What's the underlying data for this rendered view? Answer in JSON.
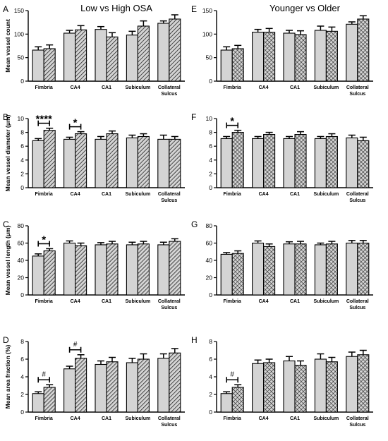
{
  "titles": {
    "left": "Low vs High OSA",
    "right": "Younger vs Older"
  },
  "colors": {
    "bar_fill": "#d4d4d4",
    "stroke": "#000000"
  },
  "chart_data": [
    {
      "panel": "A",
      "type": "bar",
      "column": "left",
      "row": 0,
      "pattern": "hatch",
      "ylabel": "Mean vessel count",
      "ylim": [
        0,
        150
      ],
      "yticks": [
        0,
        50,
        100,
        150
      ],
      "categories": [
        "Fimbria",
        "CA4",
        "CA1",
        "Subiculum",
        "Collateral Sulcus"
      ],
      "series": [
        {
          "values": [
            66,
            102,
            110,
            98,
            123
          ],
          "errors": [
            7,
            6,
            6,
            8,
            5
          ]
        },
        {
          "values": [
            69,
            109,
            94,
            117,
            132
          ],
          "errors": [
            8,
            9,
            9,
            11,
            9
          ]
        }
      ],
      "annotations": []
    },
    {
      "panel": "B",
      "type": "bar",
      "column": "left",
      "row": 1,
      "pattern": "hatch",
      "ylabel": "Mean vessel diameter (μm)",
      "ylim": [
        0,
        10
      ],
      "yticks": [
        0,
        2,
        4,
        6,
        8,
        10
      ],
      "categories": [
        "Fimbria",
        "CA4",
        "CA1",
        "Subiculum",
        "Collateral Sulcus"
      ],
      "series": [
        {
          "values": [
            6.8,
            7.0,
            7.0,
            7.2,
            7.0
          ],
          "errors": [
            0.3,
            0.3,
            0.4,
            0.4,
            0.6
          ]
        },
        {
          "values": [
            8.3,
            7.8,
            7.8,
            7.4,
            7.0
          ],
          "errors": [
            0.3,
            0.3,
            0.4,
            0.4,
            0.4
          ]
        }
      ],
      "annotations": [
        {
          "category": 0,
          "text": "****"
        },
        {
          "category": 1,
          "text": "*"
        }
      ]
    },
    {
      "panel": "C",
      "type": "bar",
      "column": "left",
      "row": 2,
      "pattern": "hatch",
      "ylabel": "Mean vessel length (μm)",
      "ylim": [
        0,
        80
      ],
      "yticks": [
        0,
        20,
        40,
        60,
        80
      ],
      "categories": [
        "Fimbria",
        "CA4",
        "CA1",
        "Subiculum",
        "Collateral Sulcus"
      ],
      "series": [
        {
          "values": [
            45,
            60,
            58,
            58,
            58
          ],
          "errors": [
            2.5,
            2.5,
            2.5,
            3,
            3
          ]
        },
        {
          "values": [
            51,
            57,
            59,
            59,
            62
          ],
          "errors": [
            2.5,
            3,
            3,
            3,
            3
          ]
        }
      ],
      "annotations": [
        {
          "category": 0,
          "text": "*"
        }
      ]
    },
    {
      "panel": "D",
      "type": "bar",
      "column": "left",
      "row": 3,
      "pattern": "hatch",
      "ylabel": "Mean area fraction (%)",
      "ylim": [
        0,
        8
      ],
      "yticks": [
        0,
        2,
        4,
        6,
        8
      ],
      "categories": [
        "Fimbria",
        "CA4",
        "CA1",
        "Subiculum",
        "Collateral Sulcus"
      ],
      "series": [
        {
          "values": [
            2.1,
            4.9,
            5.4,
            5.6,
            6.1
          ],
          "errors": [
            0.2,
            0.3,
            0.4,
            0.5,
            0.5
          ]
        },
        {
          "values": [
            2.8,
            6.1,
            5.7,
            6.0,
            6.7
          ],
          "errors": [
            0.3,
            0.4,
            0.5,
            0.6,
            0.5
          ]
        }
      ],
      "annotations": [
        {
          "category": 0,
          "text": "#"
        },
        {
          "category": 1,
          "text": "#"
        }
      ]
    },
    {
      "panel": "E",
      "type": "bar",
      "column": "right",
      "row": 0,
      "pattern": "cross",
      "ylabel": "",
      "ylim": [
        0,
        150
      ],
      "yticks": [
        0,
        50,
        100,
        150
      ],
      "categories": [
        "Fimbria",
        "CA4",
        "CA1",
        "Subiculum",
        "Collateral Sulcus"
      ],
      "series": [
        {
          "values": [
            66,
            104,
            102,
            108,
            121
          ],
          "errors": [
            7,
            6,
            6,
            9,
            5
          ]
        },
        {
          "values": [
            69,
            104,
            99,
            106,
            132
          ],
          "errors": [
            7,
            8,
            8,
            9,
            7
          ]
        }
      ],
      "annotations": []
    },
    {
      "panel": "F",
      "type": "bar",
      "column": "right",
      "row": 1,
      "pattern": "cross",
      "ylabel": "",
      "ylim": [
        0,
        10
      ],
      "yticks": [
        0,
        2,
        4,
        6,
        8,
        10
      ],
      "categories": [
        "Fimbria",
        "CA4",
        "CA1",
        "Subiculum",
        "Collateral Sulcus"
      ],
      "series": [
        {
          "values": [
            7.1,
            7.1,
            7.1,
            7.1,
            7.2
          ],
          "errors": [
            0.3,
            0.3,
            0.3,
            0.3,
            0.4
          ]
        },
        {
          "values": [
            8.0,
            7.7,
            7.7,
            7.4,
            6.8
          ],
          "errors": [
            0.3,
            0.3,
            0.4,
            0.4,
            0.5
          ]
        }
      ],
      "annotations": [
        {
          "category": 0,
          "text": "*"
        }
      ]
    },
    {
      "panel": "G",
      "type": "bar",
      "column": "right",
      "row": 2,
      "pattern": "cross",
      "ylabel": "",
      "ylim": [
        0,
        80
      ],
      "yticks": [
        0,
        20,
        40,
        60,
        80
      ],
      "categories": [
        "Fimbria",
        "CA4",
        "CA1",
        "Subiculum",
        "Collateral Sulcus"
      ],
      "series": [
        {
          "values": [
            47,
            60,
            59,
            58,
            60
          ],
          "errors": [
            2,
            2.5,
            2.5,
            2,
            3
          ]
        },
        {
          "values": [
            48,
            56,
            59,
            59,
            60
          ],
          "errors": [
            3,
            3,
            3,
            3,
            3
          ]
        }
      ],
      "annotations": []
    },
    {
      "panel": "H",
      "type": "bar",
      "column": "right",
      "row": 3,
      "pattern": "cross",
      "ylabel": "",
      "ylim": [
        0,
        8
      ],
      "yticks": [
        0,
        2,
        4,
        6,
        8
      ],
      "categories": [
        "Fimbria",
        "CA4",
        "CA1",
        "Subiculum",
        "Collateral Sulcus"
      ],
      "series": [
        {
          "values": [
            2.1,
            5.5,
            5.8,
            6.0,
            6.3
          ],
          "errors": [
            0.2,
            0.4,
            0.5,
            0.6,
            0.5
          ]
        },
        {
          "values": [
            2.8,
            5.6,
            5.3,
            5.7,
            6.5
          ],
          "errors": [
            0.3,
            0.4,
            0.5,
            0.5,
            0.5
          ]
        }
      ],
      "annotations": [
        {
          "category": 0,
          "text": "#"
        }
      ]
    }
  ]
}
